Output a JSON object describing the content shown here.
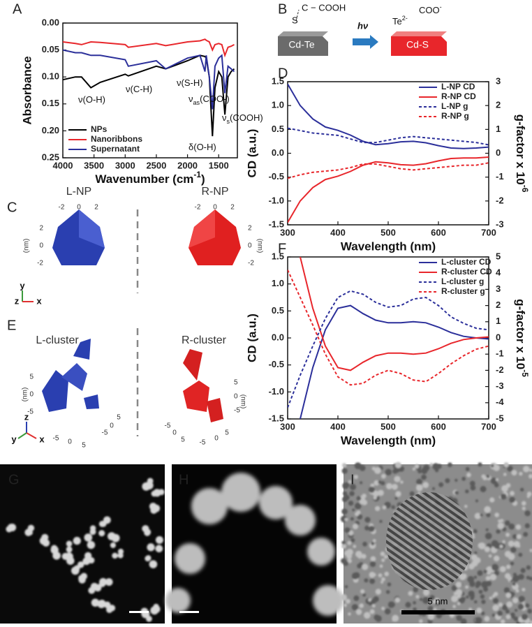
{
  "chart_data": [
    {
      "type": "line",
      "x_label": {
        "base": "Wavenumber (cm",
        "sup": "-1",
        "rest": ")"
      },
      "y_label": "Absorbance",
      "xlim": [
        4000,
        1200
      ],
      "ylim": [
        0.25,
        0
      ],
      "xticks": [
        4000,
        3500,
        3000,
        2500,
        2000,
        1500
      ],
      "yticks": [
        {
          "value": 0,
          "label": "0.00"
        },
        {
          "value": 0.05,
          "label": "0.05"
        },
        {
          "value": 0.1,
          "label": "0.10"
        },
        {
          "value": 0.15,
          "label": "0.15"
        },
        {
          "value": 0.2,
          "label": "0.20"
        },
        {
          "value": 0.25,
          "label": "0.25"
        }
      ],
      "legend": "lower left",
      "grid": false,
      "x": [
        4000,
        3800,
        3700,
        3550,
        3400,
        3000,
        2950,
        2500,
        2350,
        2000,
        1800,
        1720,
        1700,
        1650,
        1600,
        1560,
        1500,
        1450,
        1400,
        1350,
        1300,
        1250
      ],
      "series": [
        {
          "name": "NPs",
          "color": "#000000",
          "values": [
            0.105,
            0.1,
            0.1,
            0.12,
            0.11,
            0.095,
            0.098,
            0.08,
            0.085,
            0.07,
            0.06,
            0.062,
            0.065,
            0.1,
            0.21,
            0.12,
            0.09,
            0.1,
            0.17,
            0.1,
            0.09,
            0.085
          ]
        },
        {
          "name": "Nanoribbons",
          "color": "#e8262b",
          "values": [
            0.035,
            0.038,
            0.04,
            0.035,
            0.036,
            0.04,
            0.045,
            0.038,
            0.042,
            0.035,
            0.033,
            0.03,
            0.032,
            0.035,
            0.05,
            0.04,
            0.038,
            0.04,
            0.06,
            0.045,
            0.043,
            0.04
          ]
        },
        {
          "name": "Supernatant",
          "color": "#2b2f9a",
          "values": [
            0.05,
            0.055,
            0.055,
            0.06,
            0.06,
            0.068,
            0.08,
            0.07,
            0.085,
            0.065,
            0.06,
            0.09,
            0.06,
            0.1,
            0.16,
            0.08,
            0.065,
            0.06,
            0.13,
            0.08,
            0.085,
            0.09
          ]
        }
      ],
      "annotations": [
        {
          "base": "ν(O-H)"
        },
        {
          "base": "ν(C-H)"
        },
        {
          "base": "ν(S-H)"
        },
        {
          "base": "ν",
          "sub": "as",
          "rest": "(COO-)"
        },
        {
          "base": "δ(O-H)"
        },
        {
          "base": "ν",
          "sub": "s",
          "rest": "(COOH)"
        }
      ]
    },
    {
      "type": "line",
      "x_label": "Wavelength (nm)",
      "y_label": "CD (a.u.)",
      "y2_label": {
        "base": "g-factor x 10",
        "sup": "-6"
      },
      "xlim": [
        300,
        700
      ],
      "ylim": [
        -1.5,
        1.5
      ],
      "y2lim": [
        -3,
        3
      ],
      "xticks": [
        300,
        400,
        500,
        600,
        700
      ],
      "yticks": [
        -1.5,
        {
          "value": -1,
          "label": "-1.0"
        },
        -0.5,
        {
          "value": 0,
          "label": "0.0"
        },
        0.5,
        {
          "value": 1,
          "label": "1.0"
        },
        1.5
      ],
      "y2ticks": [
        -3,
        -2,
        -1,
        0,
        1,
        2,
        3
      ],
      "legend": "upper right",
      "grid": false,
      "x": [
        300,
        325,
        350,
        375,
        400,
        425,
        450,
        475,
        500,
        525,
        550,
        575,
        600,
        625,
        650,
        675,
        700
      ],
      "series": [
        {
          "name": "L-NP CD",
          "color": "#2b2f9a",
          "dashed": false,
          "values": [
            1.45,
            1.0,
            0.72,
            0.55,
            0.48,
            0.38,
            0.25,
            0.18,
            0.2,
            0.24,
            0.25,
            0.22,
            0.16,
            0.11,
            0.1,
            0.11,
            0.13
          ]
        },
        {
          "name": "R-NP CD",
          "color": "#e8262b",
          "dashed": false,
          "values": [
            -1.45,
            -1.0,
            -0.72,
            -0.55,
            -0.48,
            -0.38,
            -0.25,
            -0.18,
            -0.2,
            -0.24,
            -0.25,
            -0.22,
            -0.16,
            -0.11,
            -0.1,
            -0.1,
            -0.08
          ]
        },
        {
          "name": "L-NP g",
          "color": "#2b2f9a",
          "dashed": true,
          "axis": "y2",
          "values": [
            1.05,
            0.95,
            0.85,
            0.8,
            0.75,
            0.6,
            0.45,
            0.45,
            0.55,
            0.65,
            0.7,
            0.65,
            0.6,
            0.55,
            0.5,
            0.45,
            0.35
          ]
        },
        {
          "name": "R-NP g",
          "color": "#e8262b",
          "dashed": true,
          "axis": "y2",
          "values": [
            -1.05,
            -0.9,
            -0.8,
            -0.75,
            -0.7,
            -0.6,
            -0.45,
            -0.45,
            -0.55,
            -0.65,
            -0.7,
            -0.65,
            -0.6,
            -0.55,
            -0.5,
            -0.5,
            -0.4
          ]
        }
      ]
    },
    {
      "type": "line",
      "x_label": "Wavelength (nm)",
      "y_label": "CD (a.u.)",
      "y2_label": {
        "base": "g-factor x 10",
        "sup": "-5"
      },
      "xlim": [
        300,
        700
      ],
      "ylim": [
        -1.5,
        1.5
      ],
      "y2lim": [
        -5,
        5
      ],
      "xticks": [
        300,
        400,
        500,
        600,
        700
      ],
      "yticks": [
        -1.5,
        {
          "value": -1,
          "label": "-1.0"
        },
        -0.5,
        {
          "value": 0,
          "label": "0.0"
        },
        0.5,
        {
          "value": 1,
          "label": "1.0"
        },
        1.5
      ],
      "y2ticks": [
        -5,
        -4,
        -3,
        -2,
        -1,
        0,
        1,
        2,
        3,
        4,
        5
      ],
      "legend": "upper right",
      "grid": false,
      "x": [
        300,
        325,
        350,
        375,
        400,
        425,
        450,
        475,
        500,
        525,
        550,
        575,
        600,
        625,
        650,
        675,
        700
      ],
      "series": [
        {
          "name": "L-cluster CD",
          "color": "#2b2f9a",
          "dashed": false,
          "values": [
            null,
            -1.5,
            -0.55,
            0.15,
            0.55,
            0.6,
            0.45,
            0.33,
            0.28,
            0.28,
            0.3,
            0.28,
            0.2,
            0.1,
            0.03,
            0.0,
            -0.02
          ]
        },
        {
          "name": "R-cluster CD",
          "color": "#e8262b",
          "dashed": false,
          "values": [
            null,
            1.5,
            0.55,
            -0.15,
            -0.55,
            -0.6,
            -0.45,
            -0.33,
            -0.28,
            -0.28,
            -0.3,
            -0.28,
            -0.2,
            -0.1,
            -0.03,
            0.0,
            0.02
          ]
        },
        {
          "name": "L-cluster g",
          "color": "#2b2f9a",
          "dashed": true,
          "axis": "y2",
          "values": [
            -4.3,
            -2.3,
            -0.5,
            1.2,
            2.5,
            2.9,
            2.7,
            2.2,
            1.9,
            2.0,
            2.4,
            2.5,
            2.0,
            1.3,
            0.9,
            0.6,
            0.5
          ]
        },
        {
          "name": "R-cluster g",
          "color": "#e8262b",
          "dashed": true,
          "axis": "y2",
          "values": [
            4.2,
            2.5,
            0.8,
            -1.0,
            -2.4,
            -2.9,
            -2.8,
            -2.3,
            -2.0,
            -2.2,
            -2.6,
            -2.7,
            -2.2,
            -1.6,
            -1.1,
            -0.7,
            -0.5
          ]
        }
      ]
    }
  ],
  "panel_labels": [
    "A",
    "B",
    "C",
    "D",
    "E",
    "F",
    "G",
    "H",
    "I"
  ],
  "scheme": {
    "ligand": "C − COOH",
    "sulfur": "S",
    "light": "hν",
    "te": {
      "base": "Te",
      "sup": "2-"
    },
    "coo": {
      "base": "COO",
      "sup": "-"
    },
    "left_block": "Cd-Te",
    "right_block": "Cd-S"
  },
  "nanoparticles": {
    "left_title": "L-NP",
    "right_title": "R-NP",
    "ticks": [
      -2,
      0,
      2
    ],
    "unit": "(nm)",
    "axes": [
      "y",
      "z",
      "x"
    ]
  },
  "clusters": {
    "left_title": "L-cluster",
    "right_title": "R-cluster",
    "ticks": [
      -5,
      0,
      5
    ],
    "unit": "(nm)",
    "axes": [
      "z",
      "y",
      "x"
    ]
  },
  "micrographs": {
    "scale_label": "5 nm"
  }
}
